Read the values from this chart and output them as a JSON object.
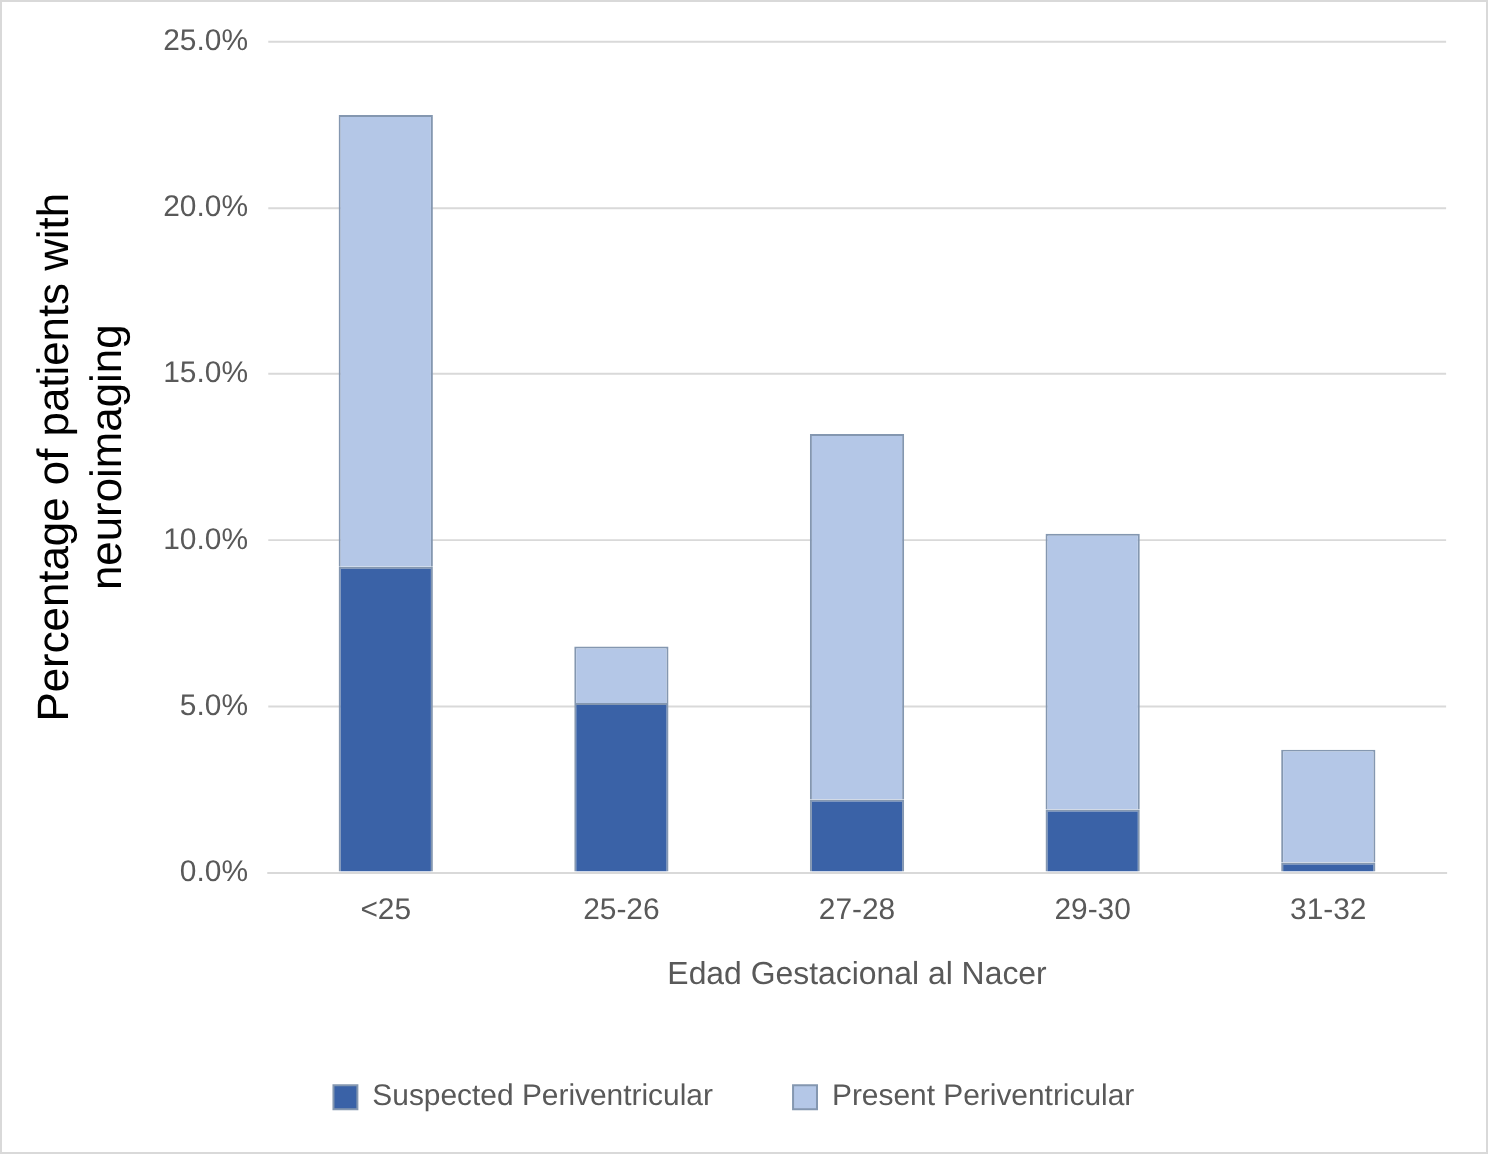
{
  "chart_data": {
    "type": "bar",
    "stacked": true,
    "xlabel": "Edad Gestacional al Nacer",
    "ylabel": "Percentage of patients with neuroimaging",
    "categories": [
      "<25",
      "25-26",
      "27-28",
      "29-30",
      "31-32"
    ],
    "series": [
      {
        "name": "Suspected Periventricular",
        "color": "#3a62a7",
        "values": [
          9.2,
          5.1,
          2.2,
          1.9,
          0.3
        ]
      },
      {
        "name": "Present Periventricular",
        "color": "#b4c7e7",
        "values": [
          13.6,
          1.7,
          11.0,
          8.3,
          3.4
        ]
      }
    ],
    "ylim": [
      0,
      25
    ],
    "yticks": [
      {
        "value": 0,
        "label": "0.0%"
      },
      {
        "value": 5,
        "label": "5.0%"
      },
      {
        "value": 10,
        "label": "10.0%"
      },
      {
        "value": 15,
        "label": "15.0%"
      },
      {
        "value": 20,
        "label": "20.0%"
      },
      {
        "value": 25,
        "label": "25.0%"
      }
    ],
    "grid": "y",
    "legend": "bottom"
  }
}
